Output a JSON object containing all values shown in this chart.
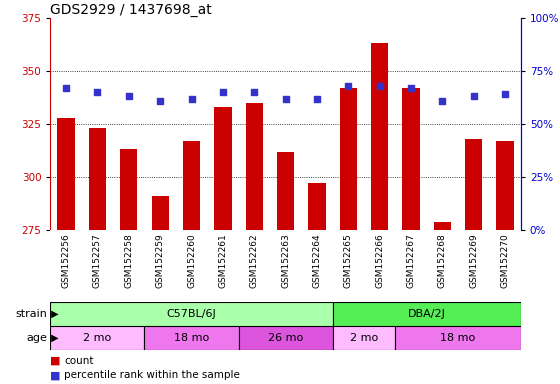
{
  "title": "GDS2929 / 1437698_at",
  "samples": [
    "GSM152256",
    "GSM152257",
    "GSM152258",
    "GSM152259",
    "GSM152260",
    "GSM152261",
    "GSM152262",
    "GSM152263",
    "GSM152264",
    "GSM152265",
    "GSM152266",
    "GSM152267",
    "GSM152268",
    "GSM152269",
    "GSM152270"
  ],
  "counts": [
    328,
    323,
    313,
    291,
    317,
    333,
    335,
    312,
    297,
    342,
    363,
    342,
    279,
    318,
    317
  ],
  "percentile_ranks": [
    67,
    65,
    63,
    61,
    62,
    65,
    65,
    62,
    62,
    68,
    68,
    67,
    61,
    63,
    64
  ],
  "ylim_left": [
    275,
    375
  ],
  "ylim_right": [
    0,
    100
  ],
  "yticks_left": [
    275,
    300,
    325,
    350,
    375
  ],
  "yticks_right": [
    0,
    25,
    50,
    75,
    100
  ],
  "bar_color": "#CC0000",
  "dot_color": "#3333CC",
  "bar_bottom": 275,
  "strain_labels": [
    {
      "text": "C57BL/6J",
      "start": 0,
      "end": 9,
      "color": "#AAFFAA"
    },
    {
      "text": "DBA/2J",
      "start": 9,
      "end": 15,
      "color": "#55EE55"
    }
  ],
  "age_groups": [
    {
      "text": "2 mo",
      "start": 0,
      "end": 3,
      "color": "#FFBBFF"
    },
    {
      "text": "18 mo",
      "start": 3,
      "end": 6,
      "color": "#EE77EE"
    },
    {
      "text": "26 mo",
      "start": 6,
      "end": 9,
      "color": "#DD55DD"
    },
    {
      "text": "2 mo",
      "start": 9,
      "end": 11,
      "color": "#FFBBFF"
    },
    {
      "text": "18 mo",
      "start": 11,
      "end": 15,
      "color": "#EE77EE"
    }
  ],
  "xtick_bg": "#C8C8C8",
  "title_fontsize": 10,
  "tick_fontsize": 6.5,
  "label_fontsize": 8,
  "annot_fontsize": 8,
  "grid_color": "#000000",
  "right_axis_color": "#0000CC",
  "left_axis_color": "#CC0000",
  "legend_square_size": 7,
  "legend_fontsize": 7.5
}
